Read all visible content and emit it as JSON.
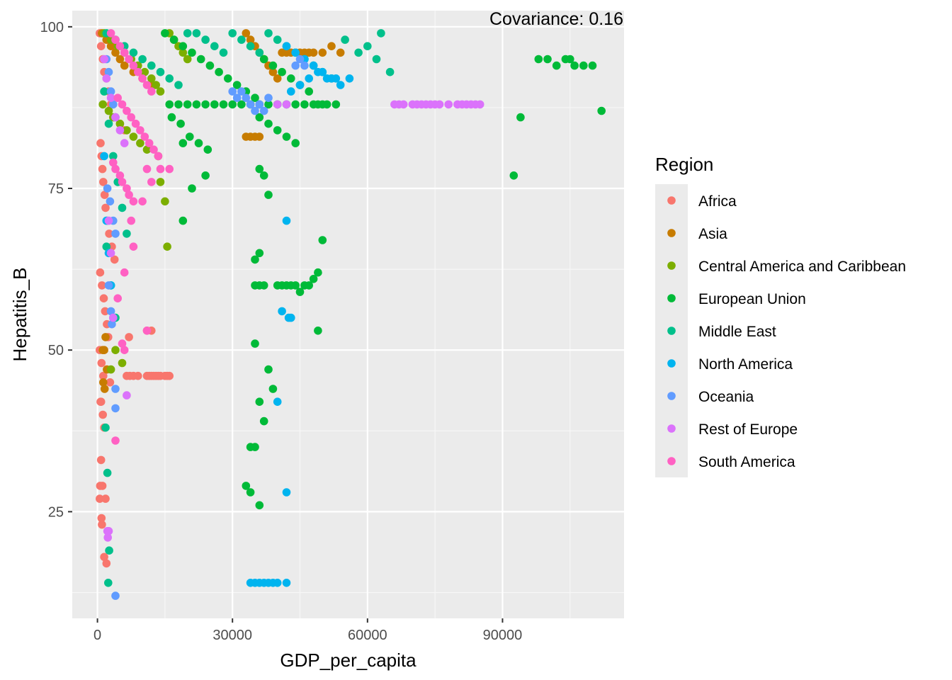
{
  "chart_data": {
    "type": "scatter",
    "title": "",
    "annotation": "Covariance: 0.16",
    "xlabel": "GDP_per_capita",
    "ylabel": "Hepatitis_B",
    "xlim": [
      -5600,
      117000
    ],
    "ylim": [
      8.5,
      102.5
    ],
    "x_ticks": [
      0,
      30000,
      60000,
      90000
    ],
    "x_tick_labels": [
      "0",
      "30000",
      "60000",
      "90000"
    ],
    "y_ticks": [
      25,
      50,
      75,
      100
    ],
    "y_tick_labels": [
      "25",
      "50",
      "75",
      "100"
    ],
    "grid": true,
    "legend": {
      "title": "Region",
      "placement": "right"
    },
    "series": [
      {
        "name": "Africa",
        "color": "#F8766D",
        "x": [
          500,
          800,
          1200,
          1500,
          2000,
          2500,
          3000,
          4000,
          5000,
          6000,
          700,
          900,
          1100,
          1300,
          1600,
          1800,
          2200,
          2600,
          3200,
          3800,
          600,
          1000,
          1400,
          1700,
          2100,
          2400,
          500,
          900,
          1300,
          2800,
          6500,
          7200,
          8000,
          9000,
          11000,
          11500,
          12000,
          12500,
          13000,
          13500,
          14000,
          15000,
          15500,
          16000,
          11000,
          12000,
          7000,
          800,
          1200,
          1500,
          800,
          600,
          1100,
          1800,
          500,
          900,
          1000,
          1500,
          2000,
          700
        ],
        "y": [
          99,
          97,
          95,
          93,
          92,
          90,
          88,
          86,
          85,
          84,
          82,
          80,
          78,
          76,
          74,
          72,
          70,
          68,
          66,
          64,
          62,
          60,
          58,
          56,
          54,
          52,
          50,
          48,
          46,
          45,
          46,
          46,
          46,
          46,
          46,
          46,
          46,
          46,
          46,
          46,
          46,
          46,
          46,
          46,
          53,
          53,
          52,
          42,
          40,
          38,
          33,
          29,
          29,
          27,
          27,
          24,
          23,
          18,
          17,
          42
        ]
      },
      {
        "name": "Asia",
        "color": "#C77C00",
        "x": [
          1000,
          2000,
          3000,
          4000,
          5000,
          6000,
          8000,
          10000,
          12000,
          33000,
          34000,
          35000,
          36000,
          37000,
          38000,
          39000,
          40000,
          41000,
          42000,
          43000,
          44000,
          45000,
          46000,
          47000,
          48000,
          50000,
          52000,
          54000,
          33000,
          34000,
          35000,
          36000,
          1200,
          1500,
          1800,
          2100,
          1300,
          1600
        ],
        "y": [
          99,
          98,
          97,
          96,
          95,
          94,
          93,
          92,
          91,
          99,
          98,
          97,
          96,
          95,
          94,
          93,
          92,
          96,
          96,
          96,
          96,
          96,
          96,
          96,
          96,
          96,
          97,
          96,
          83,
          83,
          83,
          83,
          50,
          50,
          52,
          47,
          45,
          44
        ]
      },
      {
        "name": "Central America and Caribbean",
        "color": "#7CAE00",
        "x": [
          1500,
          3000,
          4500,
          6000,
          7500,
          9000,
          10500,
          12000,
          13000,
          14000,
          1200,
          2500,
          3500,
          5000,
          6500,
          8000,
          9500,
          11000,
          16000,
          17000,
          18000,
          19000,
          20000,
          13500,
          14000,
          15000,
          15500,
          4000,
          5500,
          3000
        ],
        "y": [
          99,
          98,
          97,
          96,
          95,
          94,
          93,
          92,
          91,
          90,
          88,
          87,
          86,
          85,
          84,
          83,
          82,
          81,
          99,
          98,
          97,
          96,
          95,
          80,
          76,
          73,
          66,
          50,
          48,
          47
        ]
      },
      {
        "name": "European Union",
        "color": "#00BA38",
        "x": [
          15000,
          17000,
          19000,
          21000,
          23000,
          25000,
          27000,
          29000,
          31000,
          33000,
          35000,
          37000,
          39000,
          41000,
          43000,
          45000,
          47000,
          49000,
          51000,
          53000,
          16000,
          18000,
          20000,
          22000,
          24000,
          26000,
          28000,
          30000,
          32000,
          34000,
          36000,
          38000,
          40000,
          42000,
          44000,
          46000,
          48000,
          50000,
          16500,
          18500,
          20500,
          22500,
          24500,
          36000,
          38000,
          40000,
          42000,
          44000,
          19000,
          21000,
          24000,
          19000,
          36000,
          37000,
          38000,
          36000,
          35000,
          40000,
          41000,
          42000,
          43000,
          44000,
          45000,
          46000,
          47000,
          48000,
          49000,
          50000,
          35000,
          36000,
          37000,
          38000,
          39000,
          49000,
          35000,
          36000,
          37000,
          34000,
          35000,
          33000,
          34000,
          36000,
          98000,
          100000,
          102000,
          104000,
          105000,
          106000,
          108000,
          110000,
          112000,
          94000,
          92500
        ],
        "y": [
          99,
          98,
          97,
          96,
          95,
          94,
          93,
          92,
          91,
          90,
          89,
          95,
          94,
          93,
          92,
          91,
          90,
          88,
          88,
          88,
          88,
          88,
          88,
          88,
          88,
          88,
          88,
          88,
          88,
          88,
          88,
          88,
          88,
          88,
          88,
          88,
          88,
          88,
          86,
          85,
          83,
          82,
          81,
          86,
          85,
          84,
          83,
          82,
          82,
          75,
          77,
          70,
          78,
          77,
          74,
          65,
          64,
          60,
          60,
          60,
          60,
          60,
          59,
          60,
          60,
          61,
          62,
          67,
          60,
          60,
          60,
          47,
          44,
          53,
          51,
          42,
          39,
          35,
          35,
          29,
          28,
          26,
          95,
          95,
          94,
          95,
          95,
          94,
          94,
          94,
          87,
          86,
          77
        ]
      },
      {
        "name": "Middle East",
        "color": "#00C08B",
        "x": [
          2000,
          4000,
          6000,
          8000,
          10000,
          12000,
          14000,
          16000,
          18000,
          20000,
          22000,
          24000,
          26000,
          28000,
          30000,
          32000,
          34000,
          36000,
          38000,
          40000,
          42000,
          44000,
          46000,
          48000,
          50000,
          52000,
          55000,
          58000,
          60000,
          62000,
          63000,
          65000,
          1500,
          2500,
          3500,
          4500,
          5500,
          6500,
          2000,
          3000,
          4000,
          1800,
          2200,
          2600,
          2400
        ],
        "y": [
          99,
          98,
          97,
          96,
          95,
          94,
          93,
          92,
          91,
          99,
          99,
          98,
          97,
          96,
          99,
          98,
          97,
          96,
          99,
          98,
          97,
          96,
          95,
          94,
          93,
          92,
          98,
          96,
          97,
          95,
          99,
          93,
          90,
          85,
          80,
          76,
          72,
          68,
          66,
          60,
          55,
          38,
          31,
          19,
          14
        ]
      },
      {
        "name": "North America",
        "color": "#00B4EF",
        "x": [
          42000,
          44000,
          46000,
          48000,
          50000,
          52000,
          54000,
          56000,
          43000,
          45000,
          47000,
          49000,
          51000,
          53000,
          1500,
          2000,
          2500,
          3000,
          3500,
          42000,
          40000,
          41000,
          42500,
          43000,
          42000,
          34000,
          35000,
          36000,
          37000,
          38000,
          39000,
          40000,
          42000
        ],
        "y": [
          97,
          96,
          95,
          94,
          93,
          92,
          91,
          92,
          90,
          91,
          92,
          93,
          92,
          92,
          80,
          70,
          65,
          60,
          55,
          70,
          42,
          56,
          55,
          55,
          28,
          14,
          14,
          14,
          14,
          14,
          14,
          14,
          14
        ]
      },
      {
        "name": "Oceania",
        "color": "#619CFF",
        "x": [
          30000,
          31000,
          32000,
          33000,
          34000,
          35000,
          36000,
          37000,
          38000,
          44000,
          45000,
          46000,
          2000,
          2500,
          3000,
          3500,
          4000,
          2200,
          2800,
          3500,
          4000,
          2500,
          3000,
          3200,
          4000,
          4000,
          4000
        ],
        "y": [
          90,
          89,
          90,
          89,
          88,
          87,
          88,
          87,
          89,
          94,
          95,
          94,
          95,
          93,
          90,
          88,
          86,
          75,
          73,
          70,
          68,
          60,
          56,
          54,
          44,
          41,
          12
        ]
      },
      {
        "name": "Rest of Europe",
        "color": "#DB72FB",
        "x": [
          66000,
          67000,
          68000,
          70000,
          71000,
          72000,
          73000,
          74000,
          75000,
          76000,
          78000,
          80000,
          81000,
          82000,
          83000,
          84000,
          85000,
          40000,
          42000,
          1500,
          2000,
          3000,
          4000,
          5000,
          6000,
          2500,
          3000,
          2200,
          2500,
          2300,
          3500,
          6500
        ],
        "y": [
          88,
          88,
          88,
          88,
          88,
          88,
          88,
          88,
          88,
          88,
          88,
          88,
          88,
          88,
          88,
          88,
          88,
          88,
          88,
          95,
          92,
          89,
          86,
          84,
          82,
          70,
          65,
          22,
          22,
          21,
          55,
          43
        ]
      },
      {
        "name": "South America",
        "color": "#FF61C3",
        "x": [
          3000,
          4000,
          5000,
          6000,
          7000,
          8000,
          9000,
          10000,
          11000,
          12000,
          4500,
          5500,
          6500,
          7500,
          8500,
          9500,
          10500,
          11500,
          12500,
          13500,
          3500,
          4000,
          5000,
          5500,
          6500,
          7000,
          8000,
          10000,
          11000,
          12000,
          14000,
          16000,
          8000,
          6000,
          7500,
          4500,
          5500,
          4000,
          11000,
          6000
        ],
        "y": [
          99,
          98,
          97,
          96,
          95,
          94,
          93,
          92,
          91,
          90,
          89,
          88,
          87,
          86,
          85,
          84,
          83,
          82,
          81,
          80,
          79,
          78,
          77,
          76,
          75,
          74,
          73,
          73,
          78,
          76,
          78,
          78,
          66,
          62,
          70,
          58,
          51,
          36,
          53,
          50
        ]
      }
    ]
  }
}
